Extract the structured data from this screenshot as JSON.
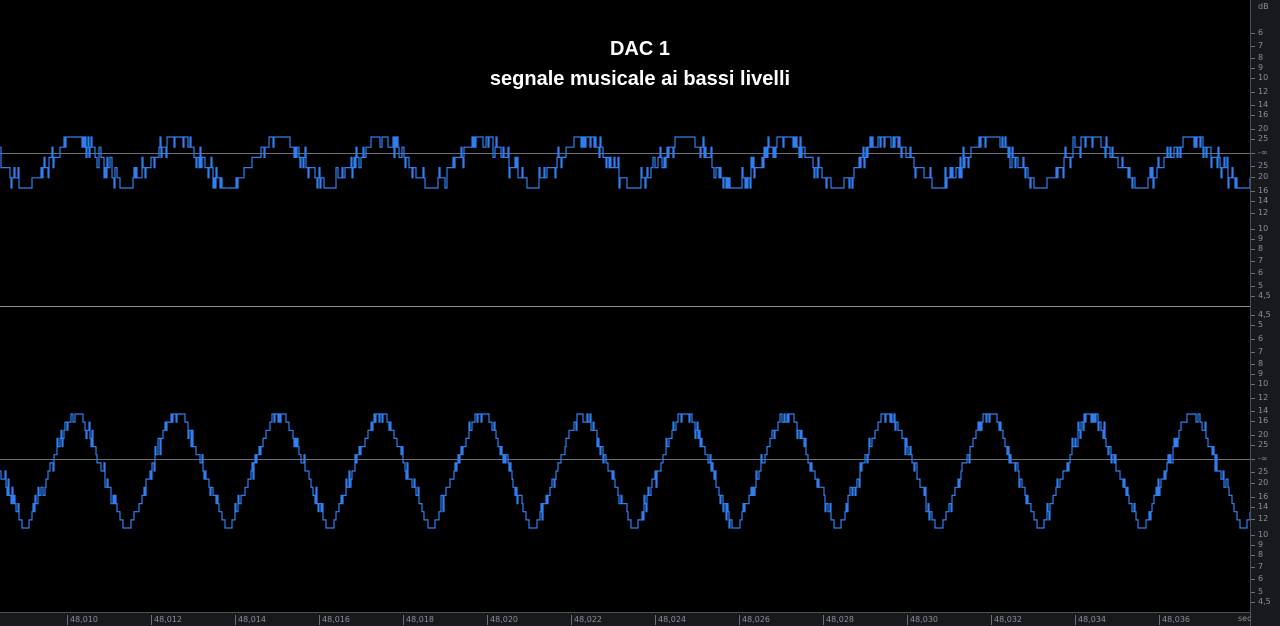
{
  "title": {
    "line1": "DAC 1",
    "line2": "segnale musicale ai bassi livelli"
  },
  "colors": {
    "waveform": "#2f7ff0",
    "background": "#000000",
    "centerline": "#6b7076",
    "ruler": "#17191c"
  },
  "db_scale": {
    "unit": "dB",
    "labels": [
      "6",
      "7",
      "8",
      "9",
      "10",
      "12",
      "14",
      "16",
      "20",
      "25",
      "-∞",
      "25",
      "20",
      "16",
      "14",
      "12",
      "10",
      "9",
      "8",
      "7",
      "6",
      "5",
      "4,5"
    ]
  },
  "db_scale_bottom": {
    "labels": [
      "4,5",
      "5",
      "6",
      "7",
      "8",
      "9",
      "10",
      "12",
      "14",
      "16",
      "20",
      "25",
      "-∞",
      "25",
      "20",
      "16",
      "14",
      "12",
      "10",
      "9",
      "8",
      "7",
      "6",
      "5",
      "4,5"
    ]
  },
  "time_ruler": {
    "unit": "sec",
    "ticks": [
      "48,010",
      "48,012",
      "48,014",
      "48,016",
      "48,018",
      "48,020",
      "48,022",
      "48,024",
      "48,026",
      "48,028",
      "48,030",
      "48,032",
      "48,034",
      "48,036"
    ]
  },
  "channels": [
    "top",
    "bottom"
  ]
}
